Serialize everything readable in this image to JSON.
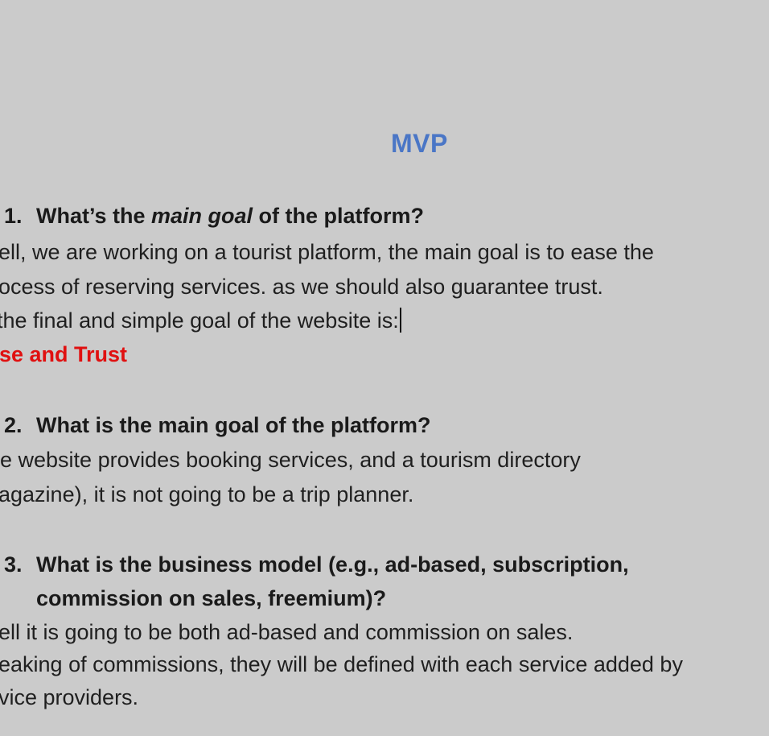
{
  "doc": {
    "title": "MVP",
    "q1": {
      "num": "1.",
      "pre": "What’s the ",
      "em": "main goal",
      "post": " of the platform?",
      "lines": [
        "ell, we are working on a tourist platform, the main goal is to ease the",
        "ocess of reserving services. as we should also guarantee trust.",
        " the final and simple goal of the website is:"
      ],
      "highlight": "se and Trust"
    },
    "q2": {
      "num": "2.",
      "text": "What is the main goal of the platform?",
      "lines": [
        "e  website provides booking services, and a tourism directory",
        "agazine), it is not going to be a trip planner."
      ]
    },
    "q3": {
      "num": "3.",
      "text_line1": "What is the business model (e.g., ad-based, subscription,",
      "text_line2": "commission on sales, freemium)?",
      "lines": [
        "ell it is going to be both ad-based and commission on sales.",
        "eaking of commissions, they will be defined with each service added by",
        "vice providers."
      ]
    }
  }
}
